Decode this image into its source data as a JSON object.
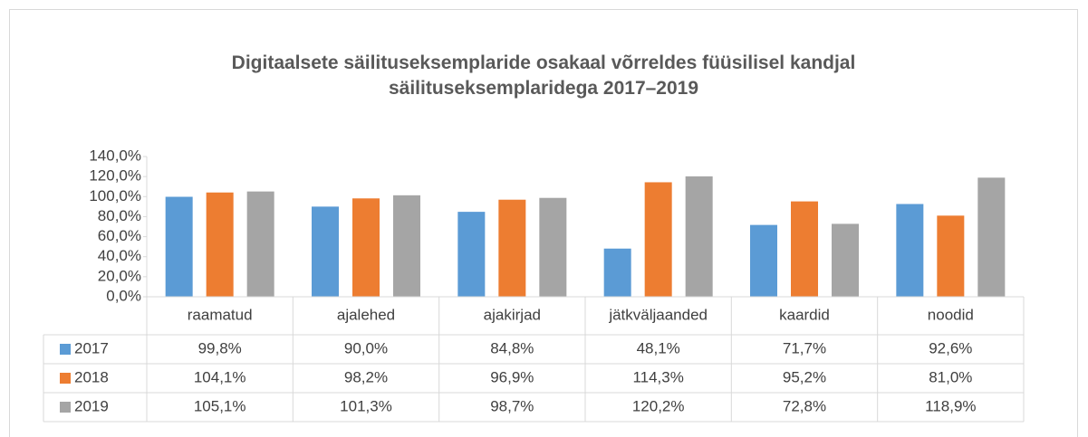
{
  "chart_data": {
    "type": "bar",
    "title": "Digitaalsete säilituseksemplaride osakaal võrreldes füüsilisel kandjal säilituseksemplaridega 2017–2019",
    "categories": [
      "raamatud",
      "ajalehed",
      "ajakirjad",
      "jätkväljaanded",
      "kaardid",
      "noodid"
    ],
    "series": [
      {
        "name": "2017",
        "color": "#5b9bd5",
        "values": [
          99.8,
          90.0,
          84.8,
          48.1,
          71.7,
          92.6
        ],
        "value_labels": [
          "99,8%",
          "90,0%",
          "84,8%",
          "48,1%",
          "71,7%",
          "92,6%"
        ]
      },
      {
        "name": "2018",
        "color": "#ed7d31",
        "values": [
          104.1,
          98.2,
          96.9,
          114.3,
          95.2,
          81.0
        ],
        "value_labels": [
          "104,1%",
          "98,2%",
          "96,9%",
          "114,3%",
          "95,2%",
          "81,0%"
        ]
      },
      {
        "name": "2019",
        "color": "#a5a5a5",
        "values": [
          105.1,
          101.3,
          98.7,
          120.2,
          72.8,
          118.9
        ],
        "value_labels": [
          "105,1%",
          "101,3%",
          "98,7%",
          "120,2%",
          "72,8%",
          "118,9%"
        ]
      }
    ],
    "ylim": [
      0,
      140
    ],
    "yticks": [
      {
        "value": 0,
        "label": "0,0%"
      },
      {
        "value": 20,
        "label": "20,0%"
      },
      {
        "value": 40,
        "label": "40,0%"
      },
      {
        "value": 60,
        "label": "60,0%"
      },
      {
        "value": 80,
        "label": "80,0%"
      },
      {
        "value": 100,
        "label": "100,0%"
      },
      {
        "value": 120,
        "label": "120,0%"
      },
      {
        "value": 140,
        "label": "140,0%"
      }
    ],
    "grid": false,
    "data_table": true
  }
}
